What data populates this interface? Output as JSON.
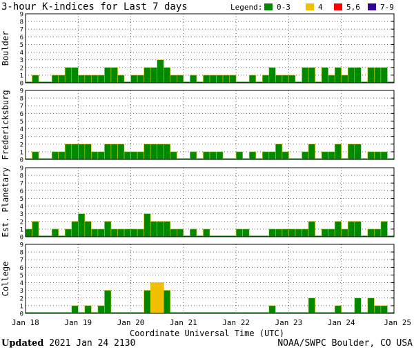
{
  "footer": {
    "updated_label": "Updated",
    "updated_value": "2021 Jan 24 2130",
    "source": "NOAA/SWPC Boulder, CO USA"
  },
  "chart_data": {
    "type": "bar",
    "title": "3-hour K-indices for Last 7 days",
    "xlabel": "Coordinate Universal Time (UTC)",
    "ylim": [
      0,
      9
    ],
    "yticks": [
      0,
      1,
      2,
      3,
      4,
      5,
      6,
      7,
      8,
      9
    ],
    "grid": true,
    "x_ticks": [
      "Jan 18",
      "Jan 19",
      "Jan 20",
      "Jan 21",
      "Jan 22",
      "Jan 23",
      "Jan 24",
      "Jan 25"
    ],
    "bins_per_day": 8,
    "legend": {
      "label": "Legend:",
      "placement": "top-right",
      "entries": [
        {
          "label": "0-3",
          "color": "#008800"
        },
        {
          "label": "4",
          "color": "#f0c000"
        },
        {
          "label": "5,6",
          "color": "#ff0000"
        },
        {
          "label": "7-9",
          "color": "#330099"
        }
      ]
    },
    "panels": [
      {
        "name": "Boulder",
        "values": [
          0,
          1,
          0,
          0,
          1,
          1,
          2,
          2,
          1,
          1,
          1,
          1,
          2,
          2,
          1,
          0,
          1,
          1,
          2,
          2,
          3,
          2,
          1,
          1,
          0,
          1,
          0,
          1,
          1,
          1,
          1,
          1,
          0,
          0,
          1,
          0,
          1,
          2,
          1,
          1,
          1,
          0,
          2,
          2,
          0,
          2,
          1,
          2,
          1,
          2,
          2,
          0,
          2,
          2,
          2,
          0
        ]
      },
      {
        "name": "Fredericksburg",
        "values": [
          0,
          1,
          0,
          0,
          1,
          1,
          2,
          2,
          2,
          2,
          1,
          1,
          2,
          2,
          2,
          1,
          1,
          1,
          2,
          2,
          2,
          2,
          1,
          0,
          0,
          1,
          0,
          1,
          1,
          1,
          0,
          0,
          1,
          0,
          1,
          0,
          1,
          1,
          2,
          1,
          0,
          0,
          1,
          2,
          0,
          1,
          1,
          2,
          0,
          2,
          2,
          0,
          1,
          1,
          1,
          0
        ]
      },
      {
        "name": "Est. Planetary",
        "values": [
          1,
          2,
          0,
          0,
          1,
          0,
          1,
          2,
          3,
          2,
          1,
          1,
          2,
          1,
          1,
          1,
          1,
          1,
          3,
          2,
          2,
          2,
          1,
          1,
          0,
          1,
          0,
          1,
          0,
          0,
          0,
          0,
          1,
          1,
          0,
          0,
          0,
          1,
          1,
          1,
          1,
          1,
          1,
          2,
          0,
          1,
          1,
          2,
          1,
          2,
          2,
          0,
          1,
          1,
          2,
          0
        ]
      },
      {
        "name": "College",
        "values": [
          0,
          0,
          0,
          0,
          0,
          0,
          0,
          1,
          0,
          1,
          0,
          1,
          3,
          0,
          0,
          0,
          0,
          0,
          3,
          4,
          4,
          3,
          0,
          0,
          0,
          0,
          0,
          0,
          0,
          0,
          0,
          0,
          0,
          0,
          0,
          0,
          0,
          1,
          0,
          0,
          0,
          0,
          0,
          2,
          0,
          0,
          0,
          1,
          0,
          0,
          2,
          0,
          2,
          1,
          1,
          0
        ]
      }
    ]
  }
}
